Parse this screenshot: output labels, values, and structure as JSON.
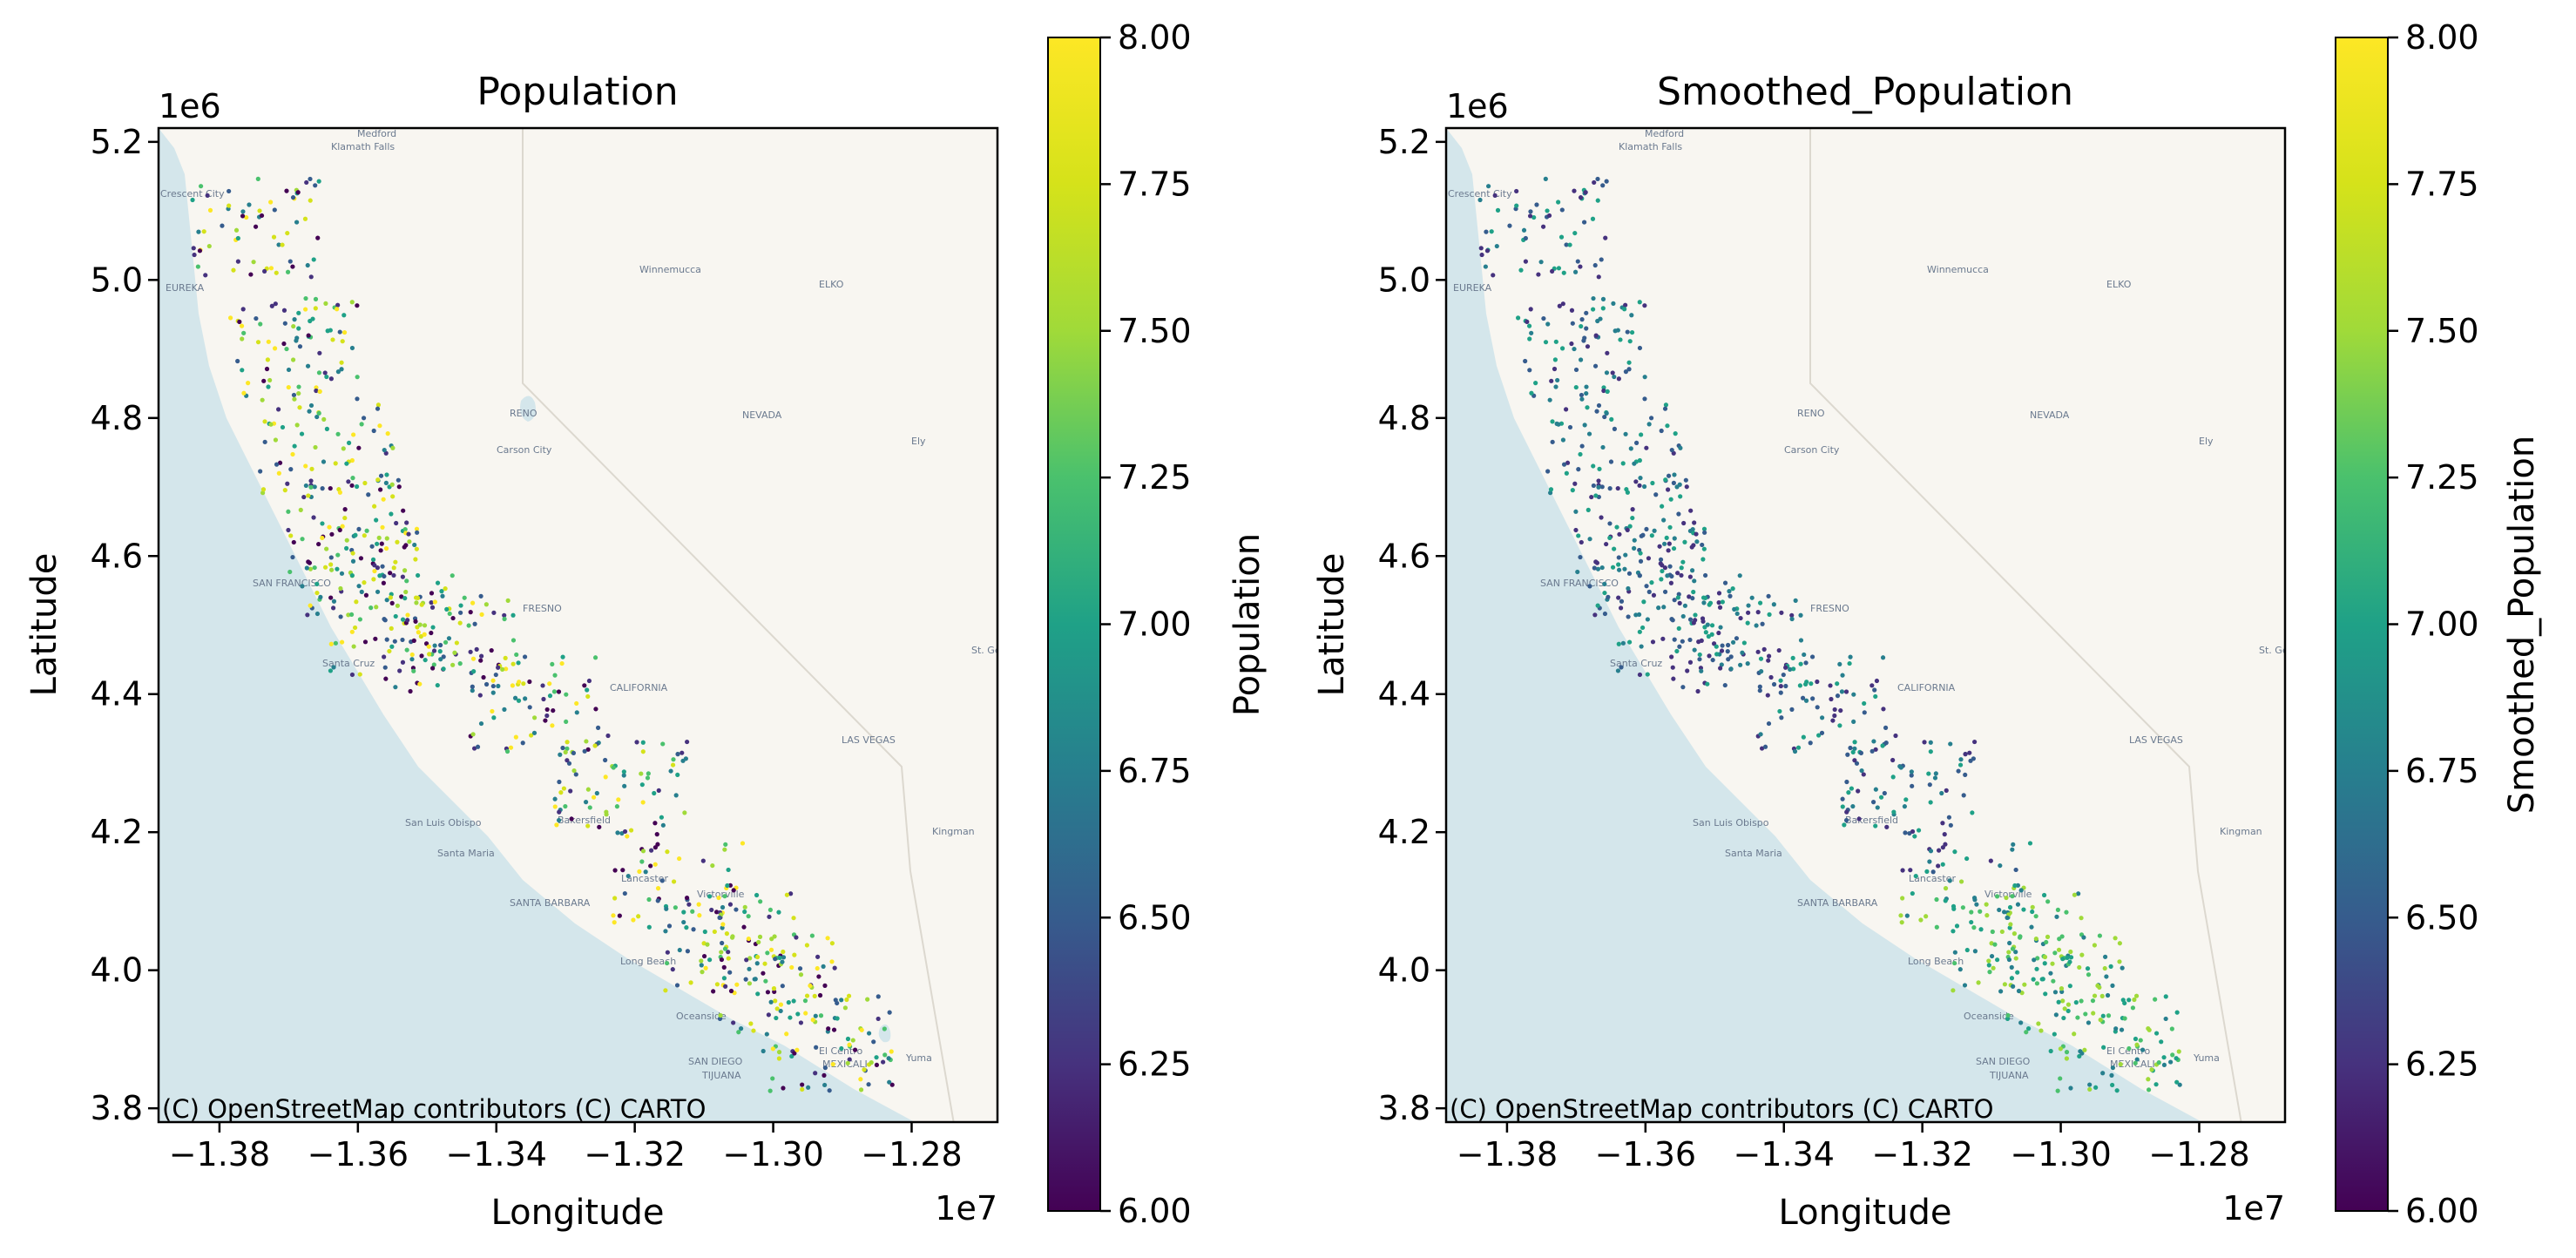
{
  "chart_data": [
    {
      "type": "scatter",
      "title": "Population",
      "xlabel": "Longitude",
      "ylabel": "Latitude",
      "x_offset_label": "1e7",
      "y_offset_label": "1e6",
      "xticks": [
        "−1.38",
        "−1.36",
        "−1.34",
        "−1.32",
        "−1.30",
        "−1.28"
      ],
      "xtick_values": [
        -1.38,
        -1.36,
        -1.34,
        -1.32,
        -1.3,
        -1.28
      ],
      "yticks": [
        "3.8",
        "4.0",
        "4.2",
        "4.4",
        "4.6",
        "4.8",
        "5.0",
        "5.2"
      ],
      "ytick_values": [
        3.8,
        4.0,
        4.2,
        4.4,
        4.6,
        4.8,
        5.0,
        5.2
      ],
      "xlim": [
        -1.3888,
        -1.2676
      ],
      "ylim": [
        3.78,
        5.22
      ],
      "colorbar": {
        "label": "Population",
        "ticks": [
          "6.00",
          "6.25",
          "6.50",
          "6.75",
          "7.00",
          "7.25",
          "7.50",
          "7.75",
          "8.00"
        ],
        "range": [
          6.0,
          8.0
        ],
        "colormap": "viridis"
      },
      "basemap": {
        "attribution": "(C) OpenStreetMap contributors (C) CARTO",
        "place_labels": [
          "Medford",
          "Klamath Falls",
          "Crescent City",
          "EUREKA",
          "Winnemucca",
          "ELKO",
          "RENO",
          "Carson City",
          "NEVADA",
          "Ely",
          "SAN FRANCISCO",
          "Santa Cruz",
          "FRESNO",
          "CALIFORNIA",
          "St. George",
          "LAS VEGAS",
          "Bakersfield",
          "San Luis Obispo",
          "Santa Maria",
          "Kingman",
          "SANTA BARBARA",
          "Lancaster",
          "Victorville",
          "Long Beach",
          "Oceanside",
          "SAN DIEGO",
          "TIJUANA",
          "El Centro",
          "MEXICALI",
          "Yuma"
        ]
      },
      "grid": false,
      "point_style": "small dots colored by log10 population"
    },
    {
      "type": "scatter",
      "title": "Smoothed_Population",
      "xlabel": "Longitude",
      "ylabel": "Latitude",
      "x_offset_label": "1e7",
      "y_offset_label": "1e6",
      "xticks": [
        "−1.38",
        "−1.36",
        "−1.34",
        "−1.32",
        "−1.30",
        "−1.28"
      ],
      "xtick_values": [
        -1.38,
        -1.36,
        -1.34,
        -1.32,
        -1.3,
        -1.28
      ],
      "yticks": [
        "3.8",
        "4.0",
        "4.2",
        "4.4",
        "4.6",
        "4.8",
        "5.0",
        "5.2"
      ],
      "ytick_values": [
        3.8,
        4.0,
        4.2,
        4.4,
        4.6,
        4.8,
        5.0,
        5.2
      ],
      "xlim": [
        -1.3888,
        -1.2676
      ],
      "ylim": [
        3.78,
        5.22
      ],
      "colorbar": {
        "label": "Smoothed_Population",
        "ticks": [
          "6.00",
          "6.25",
          "6.50",
          "6.75",
          "7.00",
          "7.25",
          "7.50",
          "7.75",
          "8.00"
        ],
        "range": [
          6.0,
          8.0
        ],
        "colormap": "viridis"
      },
      "basemap": {
        "attribution": "(C) OpenStreetMap contributors (C) CARTO"
      },
      "grid": false,
      "point_style": "small dots colored by smoothed log10 population"
    }
  ],
  "colors": {
    "land": "#f8f6f1",
    "ocean": "#d4e6eb",
    "viridis_low": "#440154",
    "viridis_high": "#fde725"
  }
}
